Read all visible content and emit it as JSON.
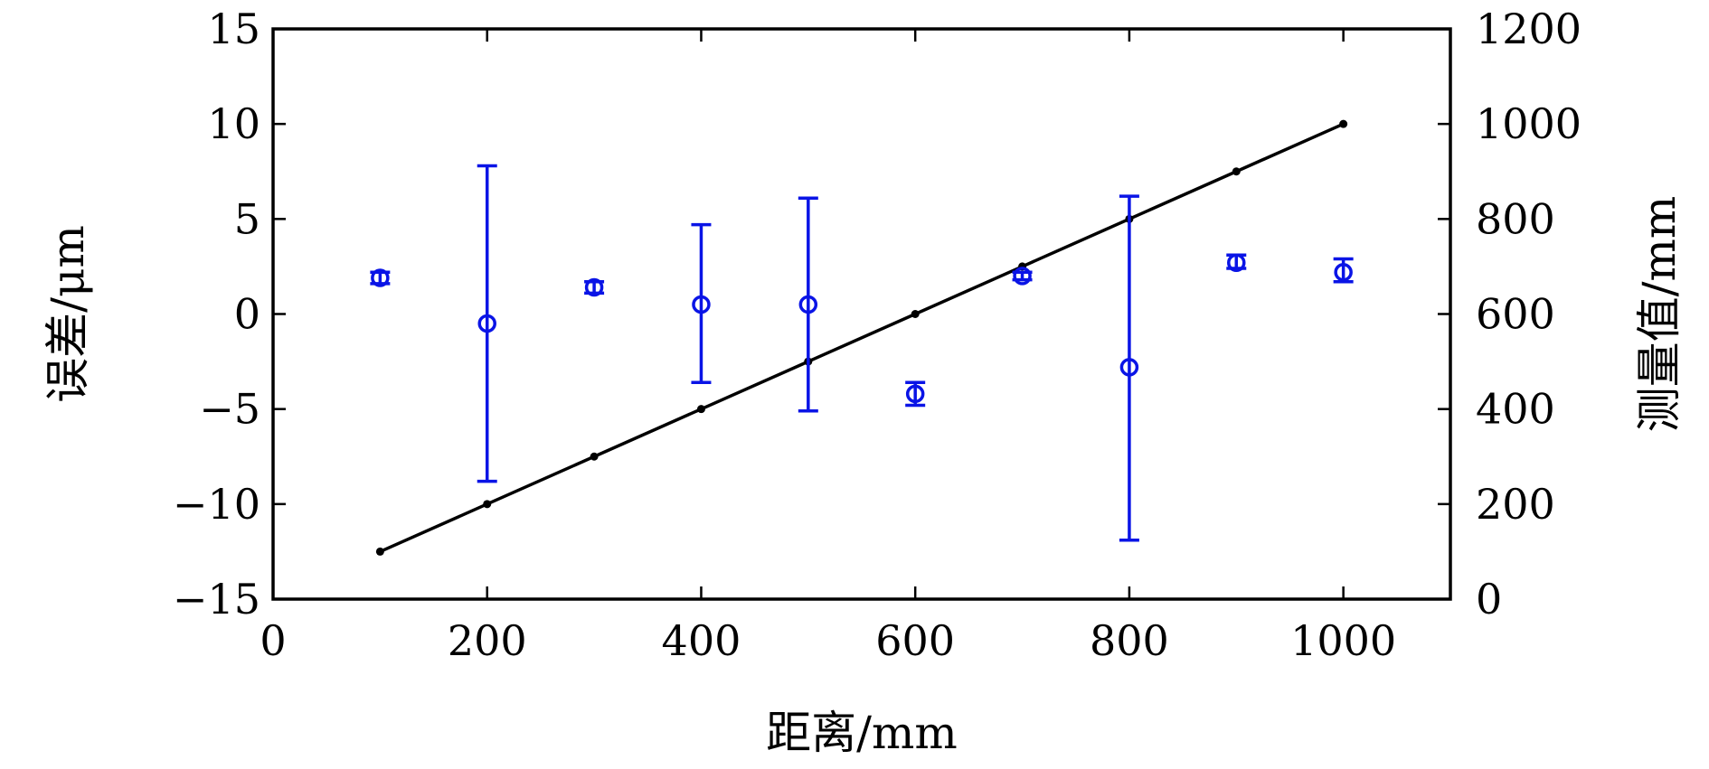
{
  "chart_data": {
    "type": "scatter",
    "xlabel": "距离/mm",
    "ylabel_left": "误差/μm",
    "ylabel_right": "测量值/mm",
    "xlim": [
      0,
      1100
    ],
    "ylim_left": [
      -15,
      15
    ],
    "ylim_right": [
      0,
      1200
    ],
    "x_ticks": [
      0,
      200,
      400,
      600,
      800,
      1000
    ],
    "x_tick_labels": [
      "0",
      "200",
      "400",
      "600",
      "800",
      "1000"
    ],
    "y_left_ticks": [
      -15,
      -10,
      -5,
      0,
      5,
      10,
      15
    ],
    "y_left_tick_labels": [
      "−15",
      "−10",
      "−5",
      "0",
      "5",
      "10",
      "15"
    ],
    "y_right_ticks": [
      0,
      200,
      400,
      600,
      800,
      1000,
      1200
    ],
    "y_right_tick_labels": [
      "0",
      "200",
      "400",
      "600",
      "800",
      "1000",
      "1200"
    ],
    "grid": false,
    "series": [
      {
        "axis": "left",
        "marker": "circle",
        "color": "#0a14e6",
        "errorbars": true,
        "points": [
          {
            "x": 100,
            "y": 1.9,
            "lo": 1.6,
            "hi": 2.2
          },
          {
            "x": 200,
            "y": -0.5,
            "lo": -8.8,
            "hi": 7.8
          },
          {
            "x": 300,
            "y": 1.4,
            "lo": 1.1,
            "hi": 1.7
          },
          {
            "x": 400,
            "y": 0.5,
            "lo": -3.6,
            "hi": 4.7
          },
          {
            "x": 500,
            "y": 0.5,
            "lo": -5.1,
            "hi": 6.1
          },
          {
            "x": 600,
            "y": -4.2,
            "lo": -4.8,
            "hi": -3.6
          },
          {
            "x": 700,
            "y": 2.0,
            "lo": 1.8,
            "hi": 2.2
          },
          {
            "x": 800,
            "y": -2.8,
            "lo": -11.9,
            "hi": 6.2
          },
          {
            "x": 900,
            "y": 2.7,
            "lo": 2.4,
            "hi": 3.1
          },
          {
            "x": 1000,
            "y": 2.2,
            "lo": 1.7,
            "hi": 2.9
          }
        ]
      },
      {
        "axis": "right",
        "marker": "dot",
        "line": true,
        "color": "#000000",
        "points": [
          {
            "x": 100,
            "y": 100
          },
          {
            "x": 200,
            "y": 200
          },
          {
            "x": 300,
            "y": 300
          },
          {
            "x": 400,
            "y": 400
          },
          {
            "x": 500,
            "y": 500
          },
          {
            "x": 600,
            "y": 600
          },
          {
            "x": 700,
            "y": 700
          },
          {
            "x": 800,
            "y": 800
          },
          {
            "x": 900,
            "y": 900
          },
          {
            "x": 1000,
            "y": 1000
          }
        ]
      }
    ]
  }
}
